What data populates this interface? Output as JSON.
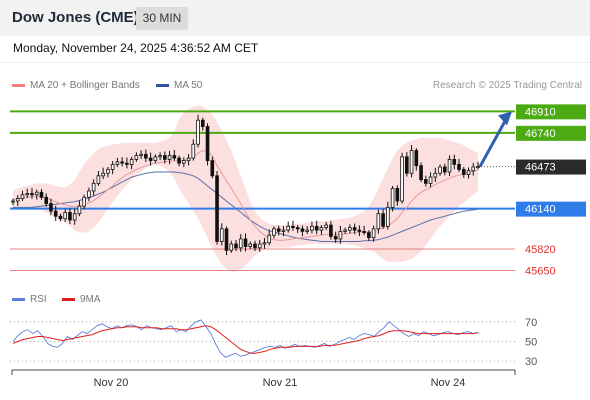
{
  "header": {
    "title": "Dow Jones (CME)",
    "timeframe": "30 MIN",
    "datetime": "Monday, November 24, 2025 4:36:52 AM CET",
    "source": "Research © 2025 Trading Central"
  },
  "legend": {
    "price": [
      {
        "label": "MA 20 + Bollinger Bands",
        "color": "#f08080"
      },
      {
        "label": "MA 50",
        "color": "#33549a"
      }
    ],
    "rsi": [
      {
        "label": "RSI",
        "color": "#5b7fdb"
      },
      {
        "label": "9MA",
        "color": "#e02020"
      }
    ]
  },
  "chart_data": [
    {
      "type": "candlestick",
      "title": "Dow Jones (CME)",
      "timeframe": "30 MIN",
      "ylim": [
        45575,
        47000
      ],
      "x_ticks": [
        "Nov 20",
        "Nov 21",
        "Nov 24"
      ],
      "levels": [
        {
          "value": 46910,
          "label": "46910",
          "role": "resistance",
          "color": "#4caa12"
        },
        {
          "value": 46740,
          "label": "46740",
          "role": "resistance",
          "color": "#4caa12"
        },
        {
          "value": 46140,
          "label": "46140",
          "role": "pivot",
          "color": "#2f7ce8"
        },
        {
          "value": 45820,
          "label": "45820",
          "role": "support",
          "color": "#e05050"
        },
        {
          "value": 45650,
          "label": "45650",
          "role": "support",
          "color": "#e05050"
        }
      ],
      "current_price": {
        "value": 46473,
        "label": "46473"
      },
      "close": [
        46200,
        46220,
        46250,
        46260,
        46250,
        46270,
        46230,
        46180,
        46120,
        46080,
        46060,
        46110,
        46050,
        46100,
        46160,
        46230,
        46280,
        46340,
        46400,
        46420,
        46450,
        46490,
        46510,
        46500,
        46490,
        46530,
        46560,
        46570,
        46540,
        46520,
        46550,
        46560,
        46530,
        46560,
        46540,
        46500,
        46520,
        46540,
        46650,
        46840,
        46790,
        46520,
        46400,
        45880,
        45980,
        45810,
        45860,
        45830,
        45900,
        45840,
        45860,
        45830,
        45860,
        45870,
        45930,
        45980,
        45960,
        45970,
        46000,
        45990,
        45980,
        45960,
        45970,
        46000,
        45970,
        45990,
        46010,
        45920,
        45900,
        45960,
        45970,
        45990,
        45970,
        45960,
        45950,
        45910,
        45980,
        46100,
        46000,
        46150,
        46300,
        46200,
        46550,
        46420,
        46600,
        46480,
        46370,
        46340,
        46390,
        46420,
        46470,
        46430,
        46530,
        46490,
        46450,
        46410,
        46440,
        46470,
        46473
      ],
      "ma20": [
        46210,
        46220,
        46225,
        46230,
        46235,
        46240,
        46235,
        46225,
        46210,
        46195,
        46180,
        46170,
        46160,
        46155,
        46160,
        46170,
        46185,
        46205,
        46230,
        46260,
        46290,
        46320,
        46355,
        46385,
        46410,
        46430,
        46450,
        46465,
        46480,
        46490,
        46500,
        46505,
        46510,
        46515,
        46518,
        46520,
        46522,
        46530,
        46550,
        46580,
        46600,
        46590,
        46560,
        46480,
        46420,
        46360,
        46300,
        46240,
        46180,
        46110,
        46050,
        46000,
        45960,
        45930,
        45905,
        45895,
        45890,
        45890,
        45895,
        45900,
        45905,
        45910,
        45915,
        45920,
        45925,
        45930,
        45935,
        45935,
        45935,
        45935,
        45940,
        45945,
        45950,
        45955,
        45955,
        45955,
        45960,
        45975,
        45985,
        46000,
        46030,
        46060,
        46110,
        46150,
        46200,
        46240,
        46270,
        46290,
        46310,
        46330,
        46350,
        46365,
        46380,
        46395,
        46405,
        46415,
        46425,
        46435,
        46445
      ],
      "bollinger_upper": [
        46280,
        46300,
        46310,
        46320,
        46330,
        46340,
        46340,
        46340,
        46330,
        46320,
        46310,
        46310,
        46330,
        46370,
        46430,
        46490,
        46540,
        46580,
        46610,
        46630,
        46640,
        46650,
        46650,
        46660,
        46660,
        46660,
        46660,
        46660,
        46660,
        46660,
        46660,
        46670,
        46680,
        46700,
        46750,
        46850,
        46900,
        46930,
        46950,
        46960,
        46950,
        46920,
        46880,
        46830,
        46760,
        46680,
        46600,
        46500,
        46400,
        46300,
        46200,
        46120,
        46070,
        46040,
        46020,
        46010,
        46010,
        46010,
        46010,
        46020,
        46020,
        46020,
        46030,
        46030,
        46040,
        46040,
        46040,
        46050,
        46050,
        46060,
        46060,
        46070,
        46080,
        46100,
        46120,
        46160,
        46220,
        46300,
        46380,
        46460,
        46540,
        46600,
        46640,
        46660,
        46680,
        46690,
        46700,
        46700,
        46700,
        46700,
        46700,
        46690,
        46680,
        46670,
        46660,
        46640,
        46620,
        46600,
        46580
      ],
      "bollinger_lower": [
        46140,
        46140,
        46140,
        46140,
        46140,
        46140,
        46130,
        46110,
        46090,
        46070,
        46050,
        46030,
        46000,
        45970,
        45950,
        45950,
        45960,
        45990,
        46030,
        46080,
        46140,
        46190,
        46240,
        46290,
        46330,
        46370,
        46400,
        46430,
        46460,
        46480,
        46490,
        46480,
        46460,
        46430,
        46380,
        46300,
        46240,
        46180,
        46120,
        46060,
        45990,
        45910,
        45830,
        45760,
        45700,
        45660,
        45640,
        45640,
        45660,
        45690,
        45730,
        45770,
        45800,
        45820,
        45830,
        45830,
        45830,
        45830,
        45830,
        45840,
        45850,
        45850,
        45860,
        45860,
        45860,
        45860,
        45860,
        45860,
        45860,
        45860,
        45860,
        45850,
        45850,
        45840,
        45830,
        45810,
        45800,
        45770,
        45740,
        45720,
        45720,
        45720,
        45720,
        45730,
        45740,
        45770,
        45800,
        45850,
        45900,
        45950,
        46000,
        46040,
        46080,
        46120,
        46160,
        46190,
        46220,
        46250,
        46280
      ],
      "ma50": [
        46150,
        46150,
        46150,
        46150,
        46150,
        46155,
        46160,
        46165,
        46170,
        46175,
        46180,
        46185,
        46190,
        46195,
        46205,
        46215,
        46225,
        46240,
        46255,
        46270,
        46290,
        46310,
        46330,
        46350,
        46370,
        46390,
        46400,
        46410,
        46420,
        46425,
        46430,
        46430,
        46430,
        46430,
        46430,
        46425,
        46420,
        46410,
        46400,
        46380,
        46350,
        46320,
        46290,
        46260,
        46230,
        46200,
        46170,
        46140,
        46110,
        46080,
        46050,
        46025,
        46000,
        45980,
        45965,
        45955,
        45945,
        45935,
        45925,
        45915,
        45905,
        45900,
        45895,
        45890,
        45885,
        45880,
        45880,
        45880,
        45880,
        45880,
        45880,
        45880,
        45880,
        45880,
        45885,
        45885,
        45890,
        45895,
        45905,
        45915,
        45930,
        45945,
        45960,
        45975,
        45990,
        46005,
        46020,
        46035,
        46050,
        46060,
        46070,
        46080,
        46090,
        46100,
        46110,
        46120,
        46125,
        46130,
        46135
      ],
      "forecast_arrow": {
        "from": 46473,
        "to": 46910
      }
    },
    {
      "type": "line",
      "title": "RSI",
      "ylim": [
        25,
        80
      ],
      "y_ticks": [
        70,
        50,
        30
      ],
      "x_ticks": [
        "Nov 20",
        "Nov 21",
        "Nov 24"
      ],
      "series": [
        {
          "name": "RSI",
          "color": "#5b7fdb",
          "values": [
            50,
            56,
            60,
            62,
            58,
            61,
            55,
            48,
            45,
            44,
            48,
            55,
            52,
            56,
            60,
            58,
            62,
            66,
            68,
            65,
            63,
            66,
            64,
            66,
            67,
            65,
            62,
            66,
            64,
            63,
            62,
            64,
            66,
            60,
            62,
            60,
            66,
            70,
            72,
            65,
            58,
            47,
            38,
            34,
            36,
            38,
            35,
            36,
            38,
            40,
            42,
            44,
            45,
            44,
            46,
            43,
            45,
            47,
            45,
            46,
            45,
            44,
            46,
            48,
            45,
            47,
            50,
            52,
            54,
            52,
            56,
            58,
            57,
            55,
            60,
            64,
            70,
            66,
            62,
            58,
            55,
            58,
            56,
            60,
            58,
            56,
            57,
            59,
            60,
            58,
            57,
            59,
            60,
            58,
            59
          ]
        },
        {
          "name": "9MA",
          "color": "#e02020",
          "values": [
            48,
            50,
            52,
            53,
            54,
            55,
            55,
            54,
            53,
            52,
            51,
            52,
            53,
            54,
            55,
            56,
            57,
            59,
            61,
            62,
            63,
            64,
            64,
            65,
            65,
            65,
            64,
            64,
            64,
            64,
            63,
            63,
            63,
            63,
            62,
            62,
            63,
            64,
            65,
            66,
            65,
            62,
            58,
            54,
            50,
            46,
            42,
            40,
            38,
            38,
            39,
            40,
            42,
            43,
            44,
            44,
            44,
            45,
            45,
            45,
            45,
            45,
            45,
            46,
            46,
            46,
            47,
            48,
            49,
            50,
            51,
            53,
            54,
            55,
            56,
            58,
            60,
            61,
            61,
            61,
            60,
            59,
            58,
            58,
            58,
            58,
            58,
            58,
            58,
            58,
            58,
            58,
            58,
            58,
            59
          ]
        }
      ]
    }
  ]
}
